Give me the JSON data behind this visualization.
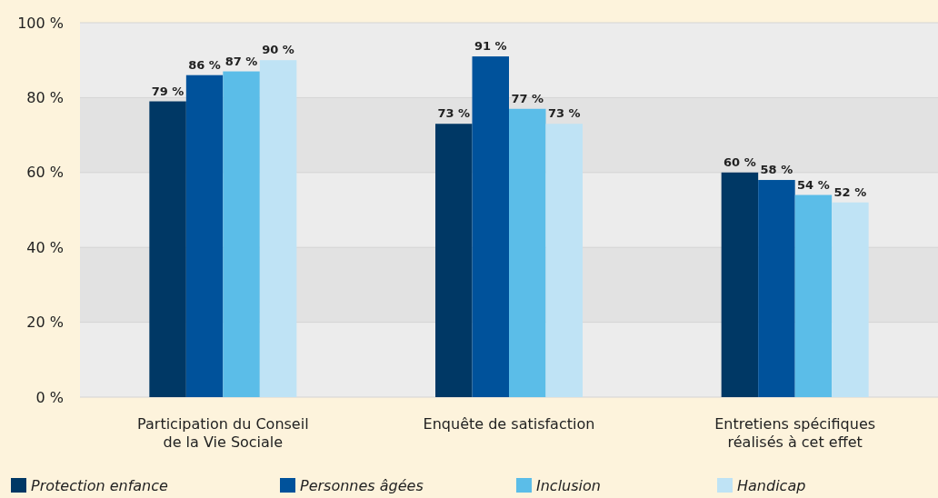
{
  "chart_data": {
    "type": "bar",
    "categories": [
      "Participation du Conseil de la Vie Sociale",
      "Enquête de satisfaction",
      "Entretiens spécifiques réalisés à cet effet"
    ],
    "series": [
      {
        "name": "Protection enfance",
        "color": "#003865",
        "values": [
          79,
          73,
          60
        ]
      },
      {
        "name": "Personnes âgées",
        "color": "#00529b",
        "values": [
          86,
          91,
          58
        ]
      },
      {
        "name": "Inclusion",
        "color": "#5bbde8",
        "values": [
          87,
          77,
          54
        ]
      },
      {
        "name": "Handicap",
        "color": "#bfe3f5",
        "values": [
          90,
          73,
          52
        ]
      }
    ],
    "ylim": [
      0,
      100
    ],
    "yticks": [
      {
        "value": 0,
        "label": "0 %"
      },
      {
        "value": 20,
        "label": "20 %"
      },
      {
        "value": 40,
        "label": "40 %"
      },
      {
        "value": 60,
        "label": "60 %"
      },
      {
        "value": 80,
        "label": "80 %"
      },
      {
        "value": 100,
        "label": "100 %"
      }
    ],
    "value_labels": [
      [
        "79 %",
        "73 %",
        "60 %"
      ],
      [
        "86 %",
        "91 %",
        "58 %"
      ],
      [
        "87 %",
        "77 %",
        "54 %"
      ],
      [
        "90 %",
        "73 %",
        "52 %"
      ]
    ],
    "grid": "y",
    "legend": "bottom"
  }
}
